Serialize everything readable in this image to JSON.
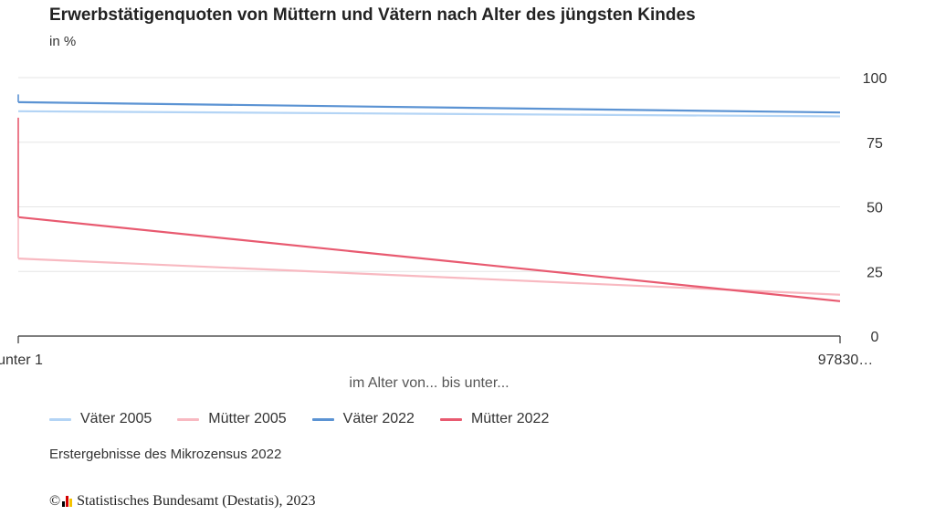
{
  "title": "Erwerbstätigenquoten von Müttern und Vätern nach Alter des jüngsten Kindes",
  "subtitle": "in %",
  "caption": "Erstergebnisse des Mikrozensus 2022",
  "credit": {
    "copyright_symbol": "©",
    "text": "Statistisches Bundesamt (Destatis), 2023",
    "logo_colors": [
      "#000000",
      "#d40000",
      "#f5c400"
    ]
  },
  "chart_data": {
    "type": "line",
    "categories": [
      "unter 1",
      "97830…"
    ],
    "xlabel": "im Alter von... bis unter...",
    "ylabel": "",
    "ylim": [
      0,
      100
    ],
    "yticks": [
      0,
      25,
      50,
      75,
      100
    ],
    "grid": true,
    "legend_position": "bottom-left",
    "series": [
      {
        "name": "Väter 2005",
        "color": "#b3d4f5",
        "values": [
          87,
          85
        ]
      },
      {
        "name": "Mütter 2005",
        "color": "#f8b9c1",
        "values": [
          30,
          16
        ]
      },
      {
        "name": "Väter 2022",
        "color": "#5b93d3",
        "values": [
          90.5,
          86.5
        ]
      },
      {
        "name": "Mütter 2022",
        "color": "#e85a70",
        "values": [
          46,
          13.5
        ]
      }
    ]
  }
}
